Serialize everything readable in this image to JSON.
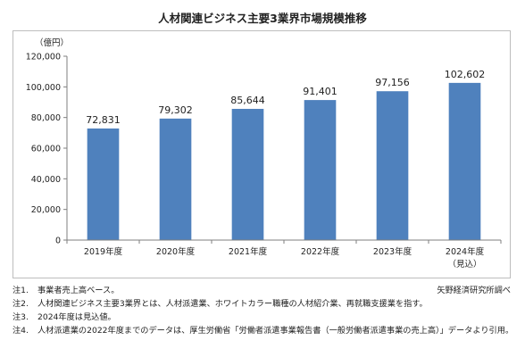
{
  "chart_data": {
    "type": "bar",
    "title": "人材関連ビジネス主要3業界市場規模推移",
    "ylabel": "（億円）",
    "xlabel": "",
    "categories": [
      "2019年度",
      "2020年度",
      "2021年度",
      "2022年度",
      "2023年度",
      "2024年度"
    ],
    "category_sublabels": [
      "",
      "",
      "",
      "",
      "",
      "（見込）"
    ],
    "values": [
      72831,
      79302,
      85644,
      91401,
      97156,
      102602
    ],
    "value_labels": [
      "72,831",
      "79,302",
      "85,644",
      "91,401",
      "97,156",
      "102,602"
    ],
    "ylim": [
      0,
      120000
    ],
    "yticks": [
      0,
      20000,
      40000,
      60000,
      80000,
      100000,
      120000
    ],
    "ytick_labels": [
      "0",
      "20,000",
      "40,000",
      "60,000",
      "80,000",
      "100,000",
      "120,000"
    ],
    "grid": false,
    "bar_color": "#4f81bd"
  },
  "notes": [
    {
      "num": "注1.",
      "text": "事業者売上高ベース。"
    },
    {
      "num": "注2.",
      "text": "人材関連ビジネス主要3業界とは、人材派遣業、ホワイトカラー職種の人材紹介業、再就職支援業を指す。"
    },
    {
      "num": "注3.",
      "text": "2024年度は見込値。"
    },
    {
      "num": "注4.",
      "text": "人材派遣業の2022年度までのデータは、厚生労働省「労働者派遣事業報告書（一般労働者派遣事業の売上高）」データより引用。"
    }
  ],
  "source": "矢野経済研究所調べ"
}
